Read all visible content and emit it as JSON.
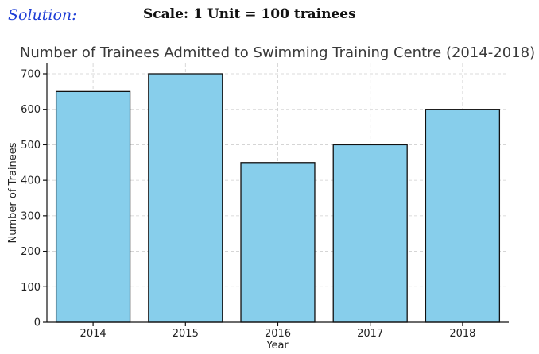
{
  "header": {
    "solution_label": "Solution:",
    "scale_text": "Scale: 1 Unit = 100 trainees"
  },
  "colors": {
    "bar_fill": "#87ceeb",
    "bar_edge": "#111111",
    "solution_text": "#1f3fd6"
  },
  "chart_data": {
    "type": "bar",
    "title": "Number of Trainees Admitted to Swimming Training Centre (2014-2018)",
    "xlabel": "Year",
    "ylabel": "Number of Trainees",
    "categories": [
      "2014",
      "2015",
      "2016",
      "2017",
      "2018"
    ],
    "values": [
      650,
      700,
      450,
      500,
      600
    ],
    "ylim": [
      0,
      700
    ],
    "yticks": [
      0,
      100,
      200,
      300,
      400,
      500,
      600,
      700
    ],
    "grid": true
  }
}
